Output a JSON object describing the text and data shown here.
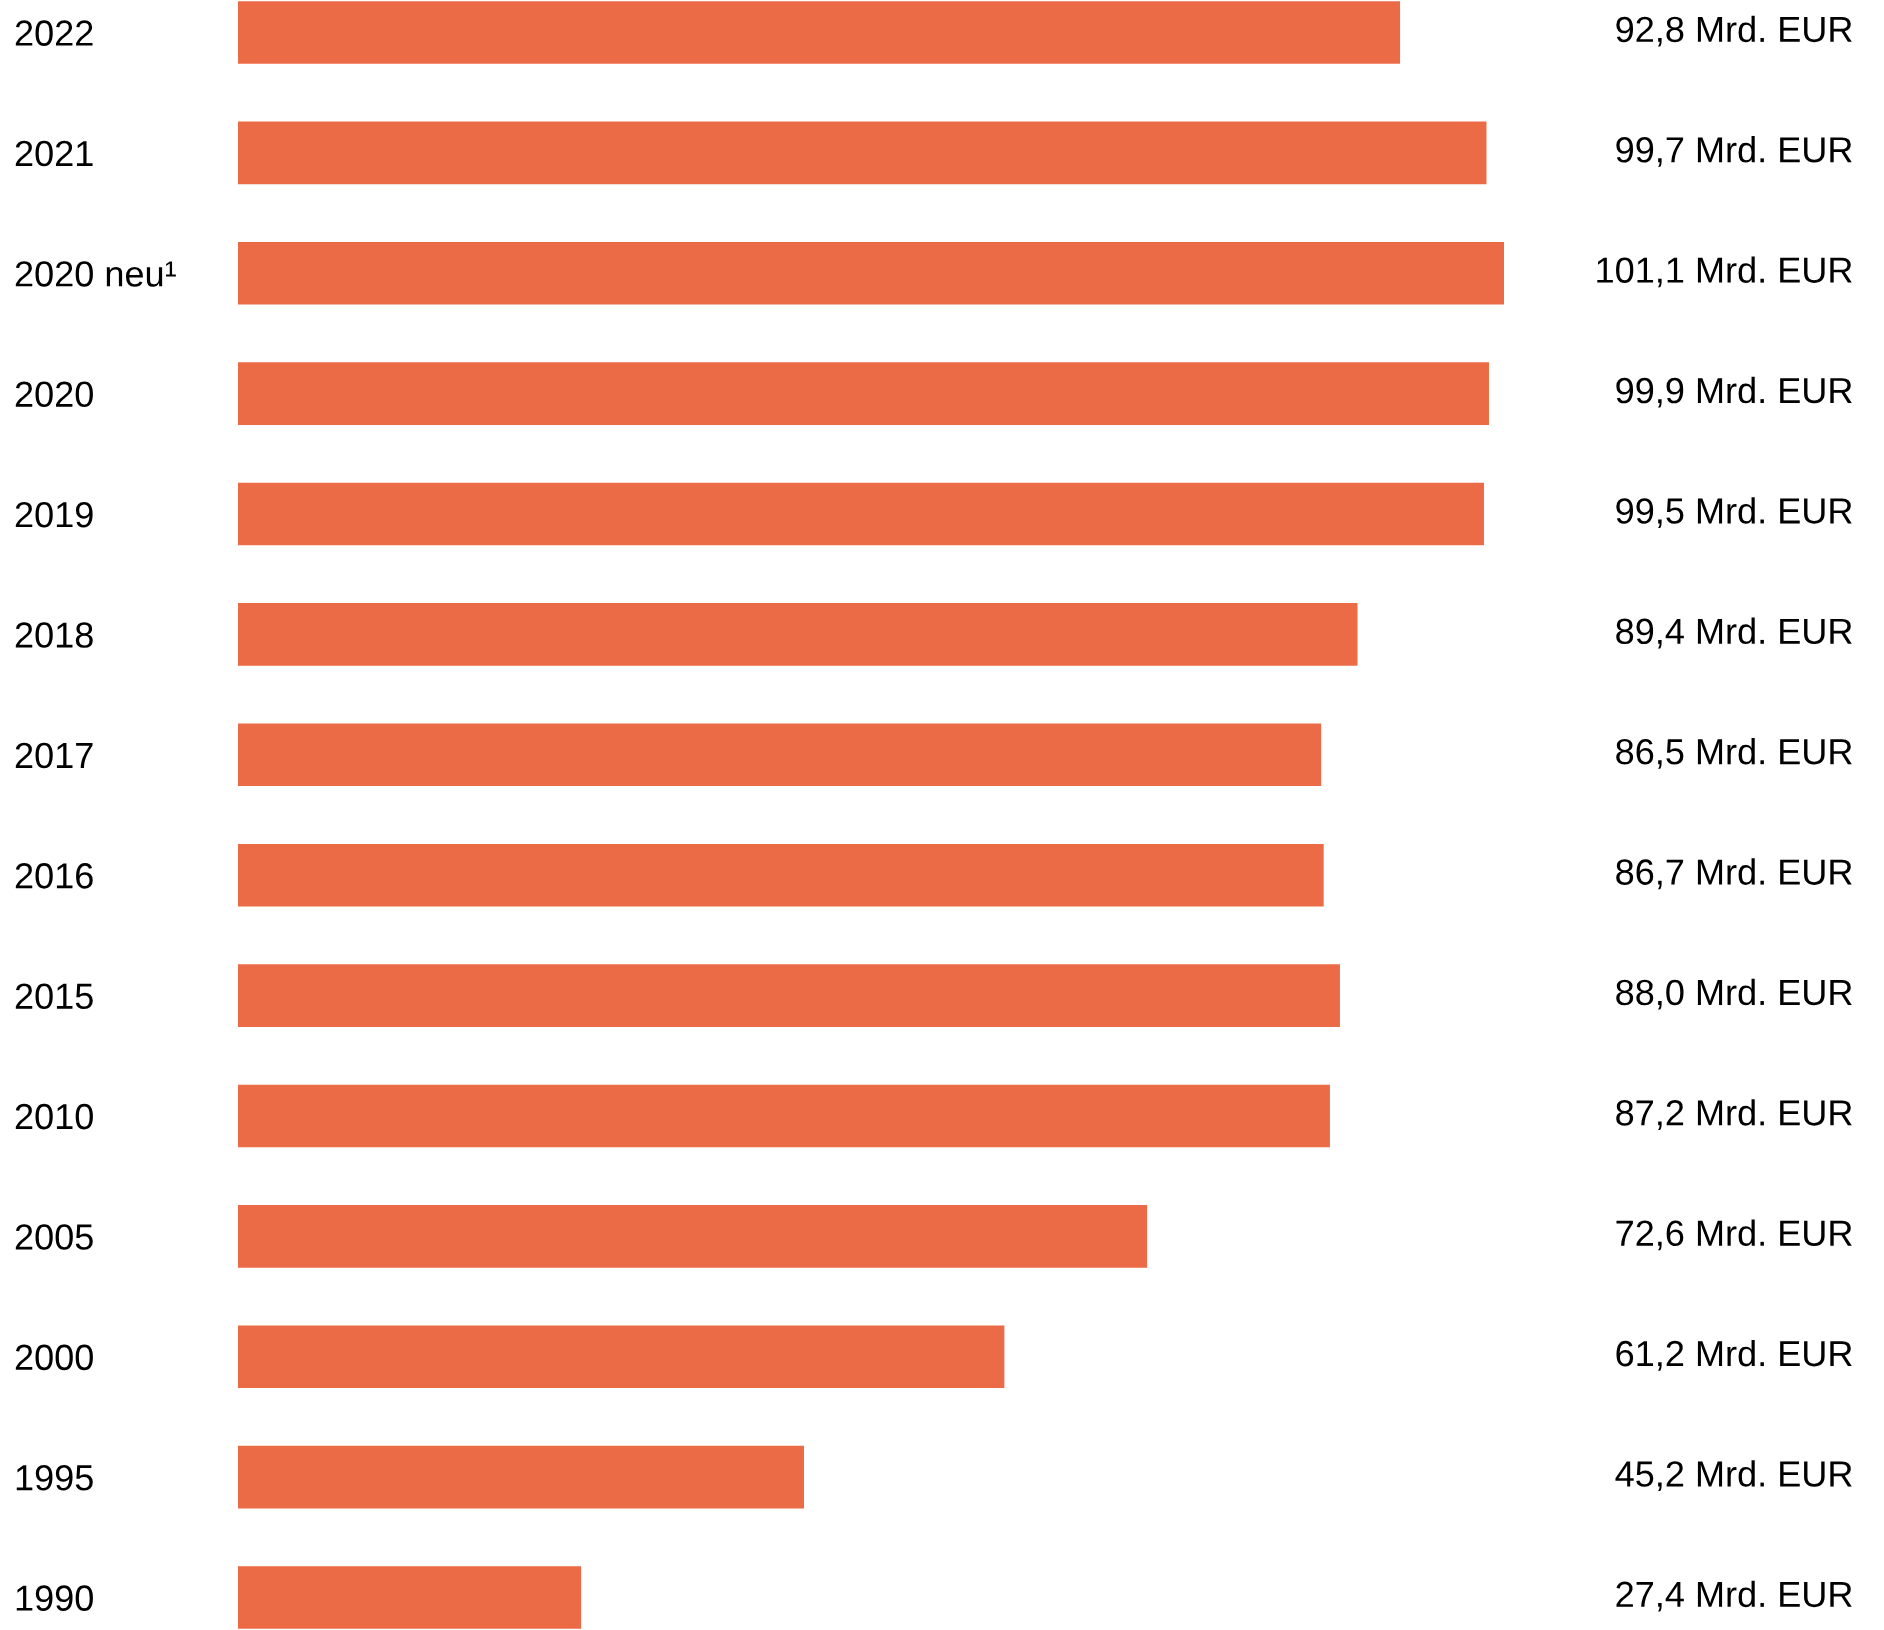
{
  "chart_data": {
    "type": "bar",
    "orientation": "horizontal",
    "color": "#ec6b47",
    "categories": [
      "2022",
      "2021",
      "2020 neu¹",
      "2020",
      "2019",
      "2018",
      "2017",
      "2016",
      "2015",
      "2010",
      "2005",
      "2000",
      "1995",
      "1990"
    ],
    "values": [
      92.8,
      99.7,
      101.1,
      99.9,
      99.5,
      89.4,
      86.5,
      86.7,
      88.0,
      87.2,
      72.6,
      61.2,
      45.2,
      27.4
    ],
    "value_labels": [
      "92,8 Mrd. EUR",
      "99,7 Mrd. EUR",
      "101,1 Mrd. EUR",
      "99,9 Mrd. EUR",
      "99,5 Mrd. EUR",
      "89,4 Mrd. EUR",
      "86,5 Mrd. EUR",
      "86,7 Mrd. EUR",
      "88,0 Mrd. EUR",
      "87,2 Mrd. EUR",
      "72,6 Mrd. EUR",
      "61,2 Mrd. EUR",
      "45,2 Mrd. EUR",
      "27,4 Mrd. EUR"
    ],
    "grid": false,
    "legend": false
  }
}
